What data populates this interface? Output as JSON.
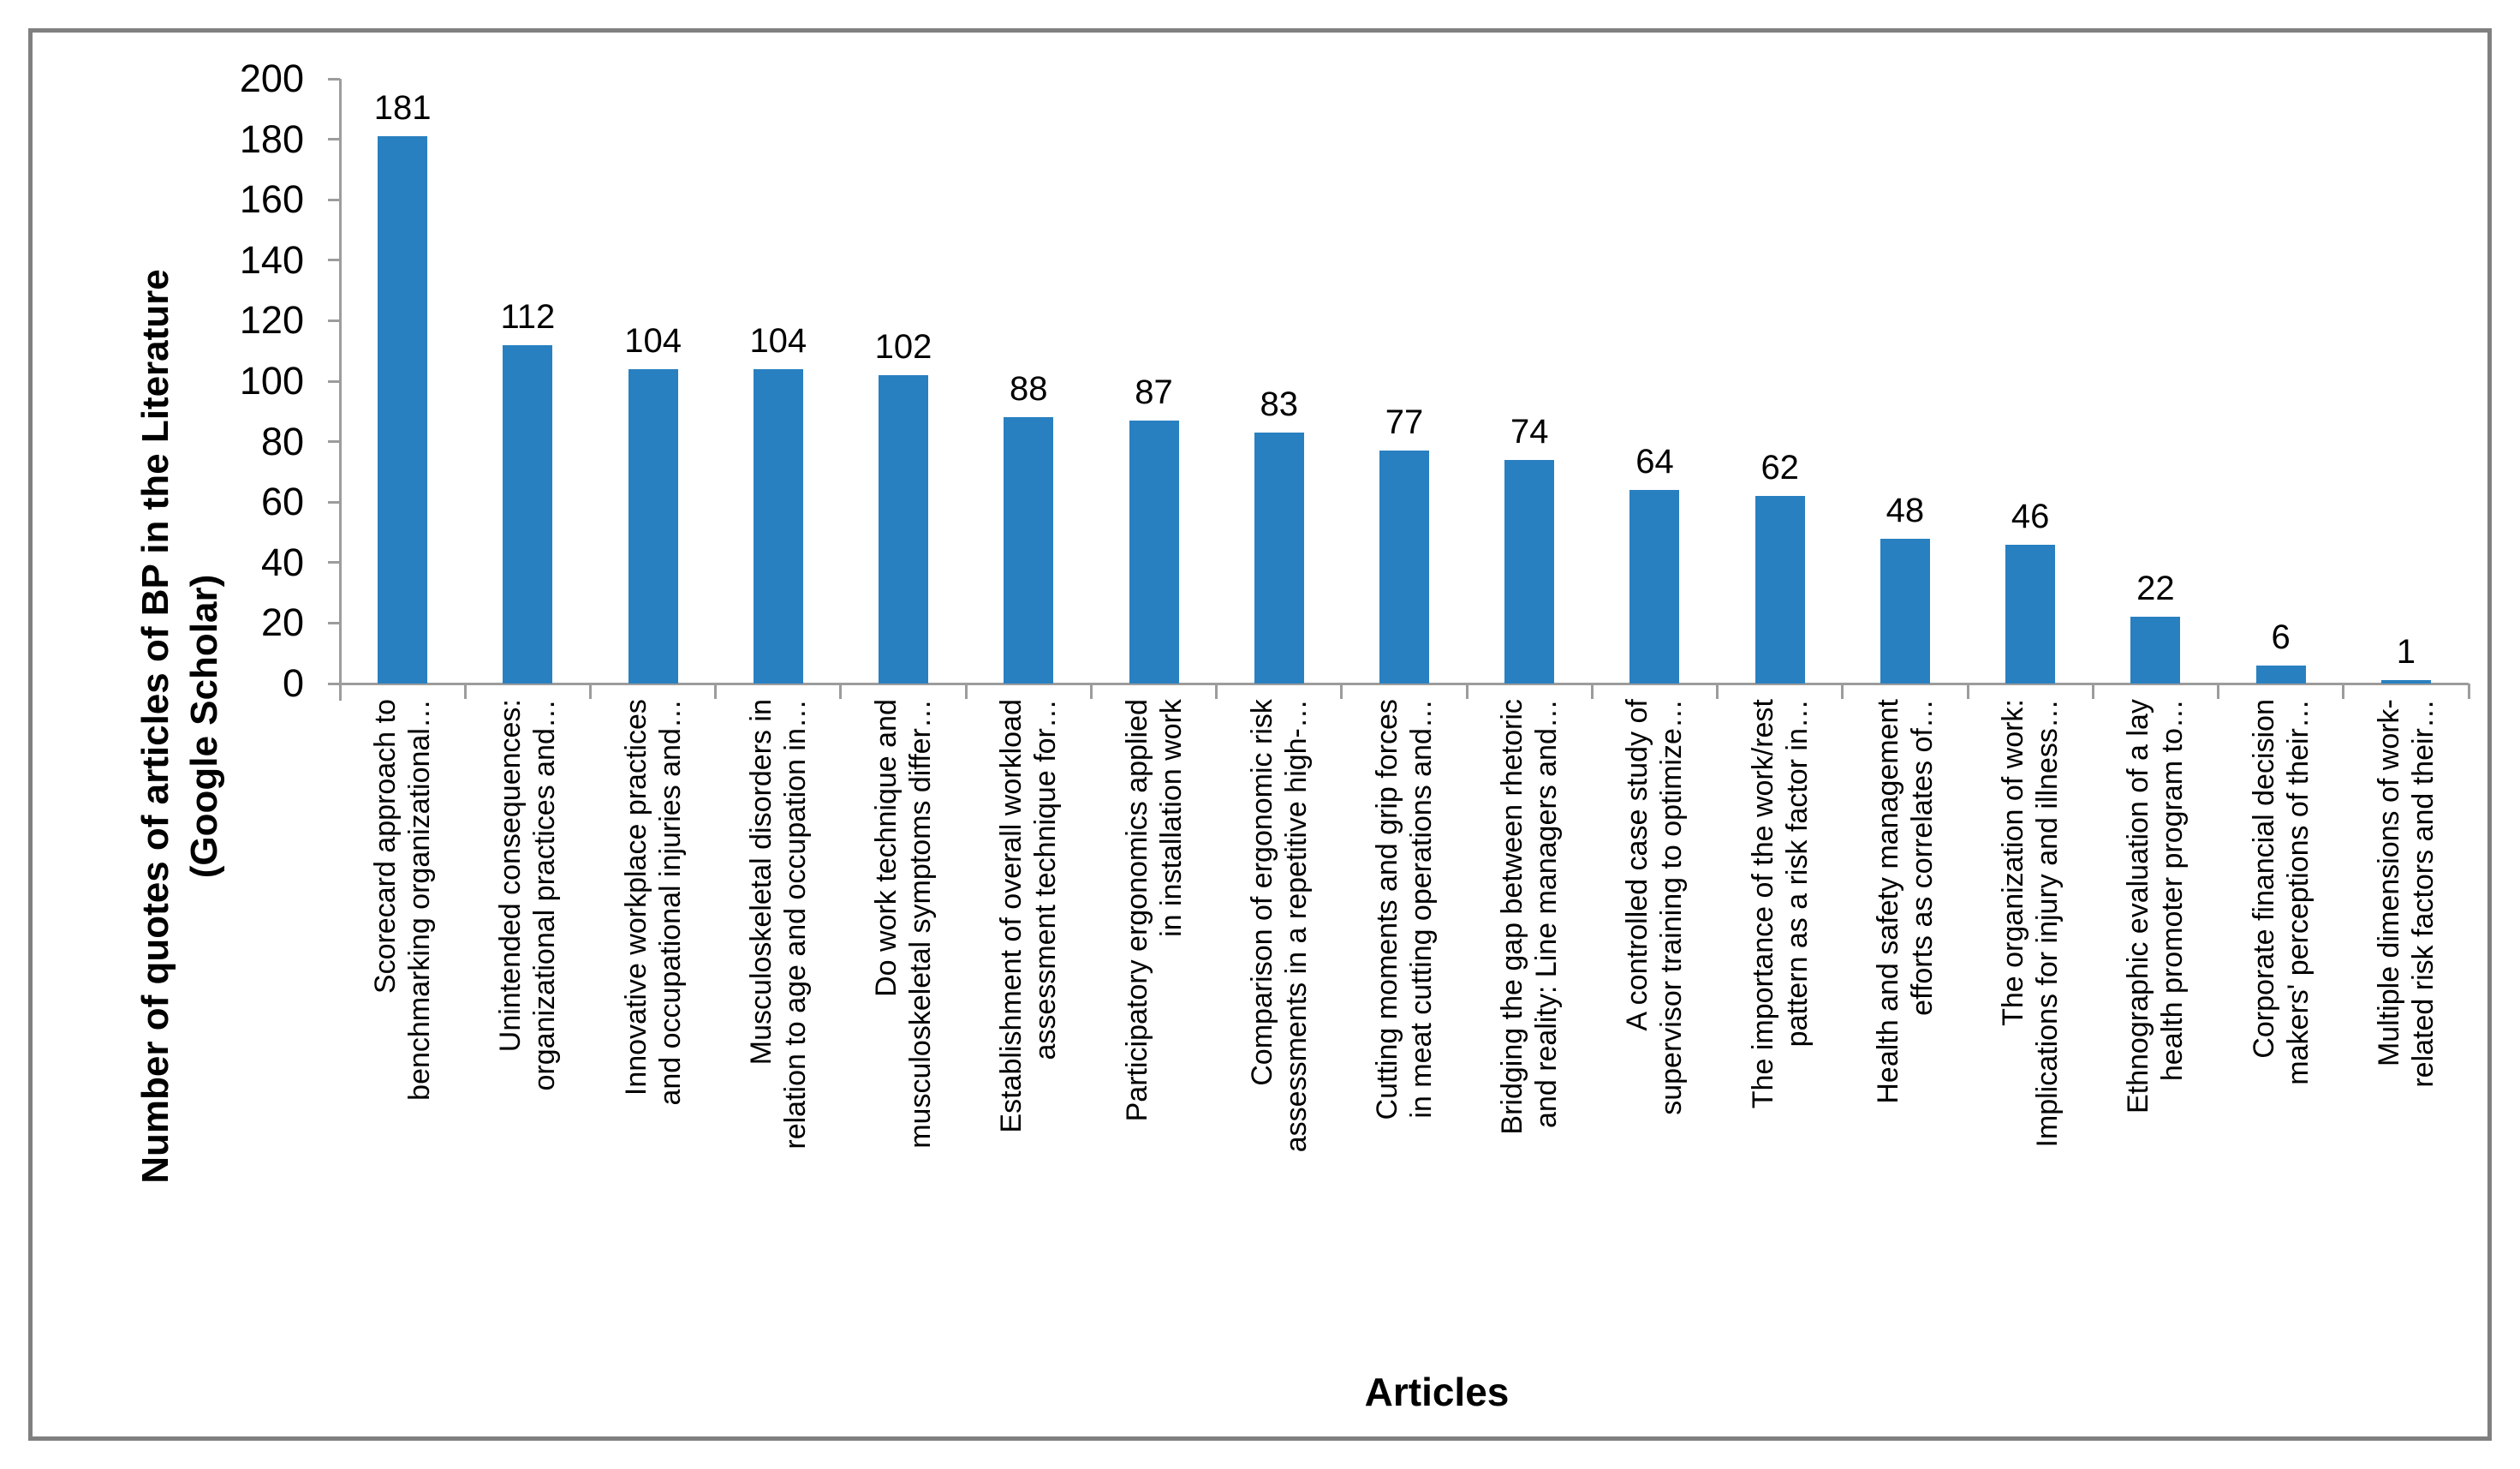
{
  "chart_data": {
    "type": "bar",
    "title": "",
    "xlabel": "Articles",
    "ylabel": "Number of quotes of articles of BP in the Literature (Google Scholar)",
    "ylabel_lines": [
      "Number of quotes of articles of BP in the Literature",
      "(Google Scholar)"
    ],
    "ylim": [
      0,
      200
    ],
    "ytick_step": 20,
    "grid": false,
    "legend": null,
    "bar_color": "#2980c0",
    "values": [
      181,
      112,
      104,
      104,
      102,
      88,
      87,
      83,
      77,
      74,
      64,
      62,
      48,
      46,
      22,
      6,
      1
    ],
    "categories": [
      [
        "Scorecard approach to",
        "benchmarking organizational…"
      ],
      [
        "Unintended consequences:",
        "organizational practices and…"
      ],
      [
        "Innovative workplace practices",
        "and occupational injuries and…"
      ],
      [
        "Musculoskeletal disorders in",
        "relation to age and occupation in…"
      ],
      [
        "Do work technique and",
        "musculoskeletal symptoms differ…"
      ],
      [
        "Establishment of overall workload",
        "assessment technique for…"
      ],
      [
        "Participatory ergonomics applied",
        "in installation work"
      ],
      [
        "Comparison of ergonomic risk",
        "assessments in a repetitive high-…"
      ],
      [
        "Cutting moments and grip forces",
        "in meat cutting operations and…"
      ],
      [
        "Bridging the gap between rhetoric",
        "and reality: Line managers and…"
      ],
      [
        "A controlled case study of",
        "supervisor training to optimize…"
      ],
      [
        "The importance of the work/rest",
        "pattern as a risk factor in…"
      ],
      [
        "Health and safety management",
        "efforts as correlates of…"
      ],
      [
        "The organization of work:",
        "Implications for injury and illness…"
      ],
      [
        "Ethnographic evaluation of a lay",
        "health promoter program to…"
      ],
      [
        "Corporate financial decision",
        "makers' perceptions of their…"
      ],
      [
        "Multiple dimensions of work-",
        "related risk factors and their…"
      ]
    ]
  },
  "colors": {
    "bar": "#2980c0",
    "axis": "#9c9c9c",
    "text": "#000000",
    "frame_border": "#808080",
    "background": "#ffffff"
  }
}
